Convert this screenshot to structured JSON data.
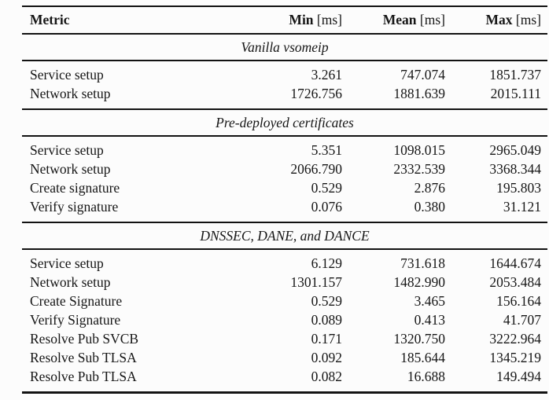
{
  "table": {
    "header": {
      "metric": "Metric",
      "min": "Min",
      "mean": "Mean",
      "max": "Max",
      "unit": "[ms]"
    },
    "sections": [
      {
        "title": "Vanilla vsomeip",
        "rows": [
          {
            "metric": "Service setup",
            "min": "3.261",
            "mean": "747.074",
            "max": "1851.737"
          },
          {
            "metric": "Network setup",
            "min": "1726.756",
            "mean": "1881.639",
            "max": "2015.111"
          }
        ]
      },
      {
        "title": "Pre-deployed certificates",
        "rows": [
          {
            "metric": "Service setup",
            "min": "5.351",
            "mean": "1098.015",
            "max": "2965.049"
          },
          {
            "metric": "Network setup",
            "min": "2066.790",
            "mean": "2332.539",
            "max": "3368.344"
          },
          {
            "metric": "Create signature",
            "min": "0.529",
            "mean": "2.876",
            "max": "195.803"
          },
          {
            "metric": "Verify signature",
            "min": "0.076",
            "mean": "0.380",
            "max": "31.121"
          }
        ]
      },
      {
        "title": "DNSSEC, DANE, and DANCE",
        "rows": [
          {
            "metric": "Service setup",
            "min": "6.129",
            "mean": "731.618",
            "max": "1644.674"
          },
          {
            "metric": "Network setup",
            "min": "1301.157",
            "mean": "1482.990",
            "max": "2053.484"
          },
          {
            "metric": "Create Signature",
            "min": "0.529",
            "mean": "3.465",
            "max": "156.164"
          },
          {
            "metric": "Verify Signature",
            "min": "0.089",
            "mean": "0.413",
            "max": "41.707"
          },
          {
            "metric": "Resolve Pub SVCB",
            "min": "0.171",
            "mean": "1320.750",
            "max": "3222.964"
          },
          {
            "metric": "Resolve Sub TLSA",
            "min": "0.092",
            "mean": "185.644",
            "max": "1345.219"
          },
          {
            "metric": "Resolve Pub TLSA",
            "min": "0.082",
            "mean": "16.688",
            "max": "149.494"
          }
        ]
      }
    ],
    "colors": {
      "text": "#161616",
      "rule": "#121212",
      "background": "#fcfcfc"
    }
  }
}
